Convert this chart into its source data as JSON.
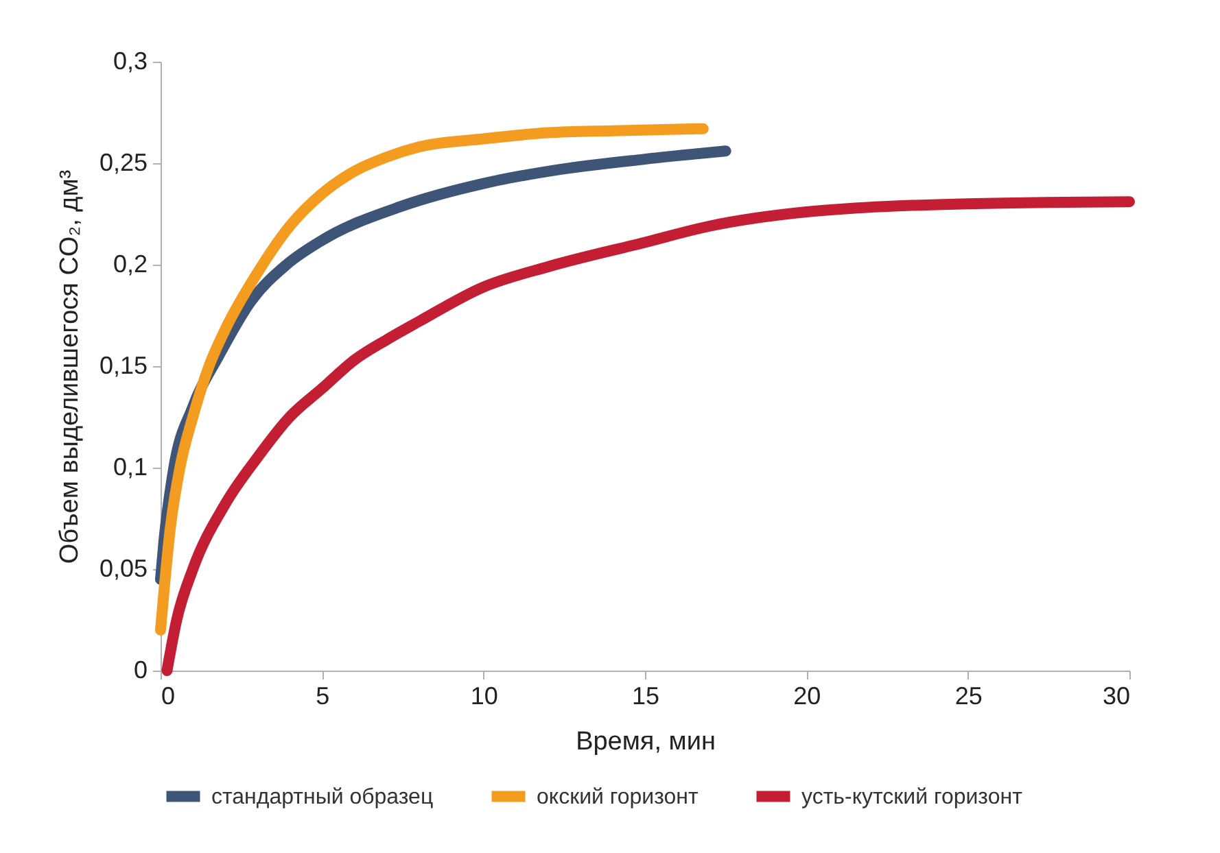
{
  "chart_data": {
    "type": "line",
    "xlabel": "Время, мин",
    "ylabel": "Объем выделившегося CO₂, дм³",
    "xlim": [
      0,
      30
    ],
    "xticks": [
      0,
      5,
      10,
      15,
      20,
      25,
      30
    ],
    "ylim": [
      0,
      0.3
    ],
    "yticks": [
      0,
      {
        "value": 0.05,
        "label": "0,05"
      },
      {
        "value": 0.1,
        "label": "0,1"
      },
      {
        "value": 0.15,
        "label": "0,15"
      },
      {
        "value": 0.2,
        "label": "0,2"
      },
      {
        "value": 0.25,
        "label": "0,25"
      },
      {
        "value": 0.3,
        "label": "0,3"
      }
    ],
    "grid": false,
    "legend": "bottom",
    "marker": "none",
    "line_style": "solid",
    "series": [
      {
        "name": "стандартный образец",
        "color": "#3f5577",
        "x": [
          0,
          0.1,
          0.4,
          1,
          1.8,
          2.8,
          3.9,
          5,
          7.5,
          10,
          12.4,
          15,
          17.5
        ],
        "values": [
          0.045,
          0.063,
          0.099,
          0.13,
          0.155,
          0.182,
          0.2,
          0.212,
          0.229,
          0.24,
          0.247,
          0.252,
          0.256
        ]
      },
      {
        "name": "окский горизонт",
        "color": "#f39c1f",
        "x": [
          0,
          0.3,
          0.6,
          1,
          1.5,
          2,
          3,
          4,
          5,
          6,
          7,
          8,
          10,
          12,
          14,
          16.8
        ],
        "values": [
          0.02,
          0.07,
          0.1,
          0.125,
          0.15,
          0.168,
          0.196,
          0.219,
          0.235,
          0.246,
          0.253,
          0.258,
          0.262,
          0.265,
          0.266,
          0.267
        ]
      },
      {
        "name": "усть-кутский горизонт",
        "color": "#c41e35",
        "x": [
          0.2,
          0.5,
          1,
          2,
          3,
          4,
          5,
          6,
          7,
          8,
          10,
          12,
          15,
          17,
          20,
          25,
          30
        ],
        "values": [
          0,
          0.025,
          0.05,
          0.082,
          0.105,
          0.125,
          0.139,
          0.153,
          0.163,
          0.172,
          0.189,
          0.199,
          0.211,
          0.219,
          0.226,
          0.23,
          0.231
        ]
      }
    ]
  }
}
